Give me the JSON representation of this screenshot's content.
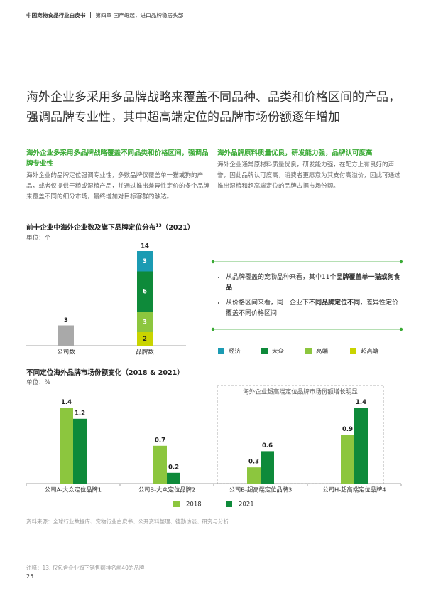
{
  "header": {
    "title": "中国宠物食品行业白皮书",
    "chapter": "第四章 国产崛起，进口品牌稳居头部"
  },
  "headline": "海外企业多采用多品牌战略来覆盖不同品种、品类和价格区间的产品，强调品牌专业性，其中超高端定位的品牌市场份额逐年增加",
  "columns": [
    {
      "heading": "海外企业多采用多品牌战略覆盖不同品类和价格区间，强调品牌专业性",
      "body": "海外企业的品牌定位强调专业性，多数品牌仅覆盖单一猫或狗的产品，或者仅提供干粮或湿粮产品，并通过推出差异性定价的多个品牌来覆盖不同的细分市场，最终增加对目标客群的触达。"
    },
    {
      "heading": "海外品牌原料质量优良，研发能力强，品牌认可度高",
      "body": "海外企业通常原材料质量优良，研发能力强，在配方上有良好的声誉，因此品牌认可度高，消费者更愿意为其支付高溢价，因此可通过推出湿粮和超高端定位的品牌占据市场份额。"
    }
  ],
  "notes": [
    [
      {
        "text": "从品牌覆盖的宠物品种来看，其中11个",
        "bold": false
      },
      {
        "text": "品牌覆盖单一猫或狗食品",
        "bold": true
      }
    ],
    [
      {
        "text": "从价格区间来看，同一企业下",
        "bold": false
      },
      {
        "text": "不同品牌定位不同",
        "bold": true
      },
      {
        "text": "，差异性定价覆盖不同价格区间",
        "bold": false
      }
    ]
  ],
  "chart_data": [
    {
      "type": "stacked_bar",
      "title": "前十企业中海外企业数及旗下品牌定位分布",
      "footnote_ref": "13",
      "period": "（2021）",
      "subtitle": "单位：个",
      "categories": [
        "公司数",
        "品牌数"
      ],
      "values": [
        3,
        null
      ],
      "color": "#a9a9a9",
      "totals": [
        null,
        14
      ],
      "series": [
        {
          "name": "经济",
          "color": "#1b9bb3",
          "values": [
            null,
            3
          ]
        },
        {
          "name": "大众",
          "color": "#0e8a3a",
          "values": [
            null,
            6
          ]
        },
        {
          "name": "高端",
          "color": "#8cc63e",
          "values": [
            null,
            3
          ]
        },
        {
          "name": "超高端",
          "color": "#c9d400",
          "values": [
            null,
            2
          ]
        }
      ]
    },
    {
      "type": "bar",
      "title": "不同定位海外品牌市场份额变化（2018 & 2021）",
      "subtitle": "单位：%",
      "categories": [
        "公司A-大众定位品牌1",
        "公司B-大众定位品牌2",
        "公司B-超高端定位品牌3",
        "公司H-超高端定位品牌4"
      ],
      "series": [
        {
          "name": "2018",
          "color": "#8cc63e",
          "values": [
            1.4,
            0.7,
            0.3,
            0.9
          ]
        },
        {
          "name": "2021",
          "color": "#0e8a3a",
          "values": [
            1.2,
            0.2,
            0.6,
            1.4
          ]
        }
      ],
      "annotation": "海外企业超高端定位品牌市场份额增长明显"
    }
  ],
  "source": "资料来源：全球行业数据库、宠物行业白皮书、公开资料整理、德勤访谈、研究与分析",
  "footnote": "注释：13. 仅包含企业旗下销售额排名前40的品牌",
  "page_number": "25"
}
